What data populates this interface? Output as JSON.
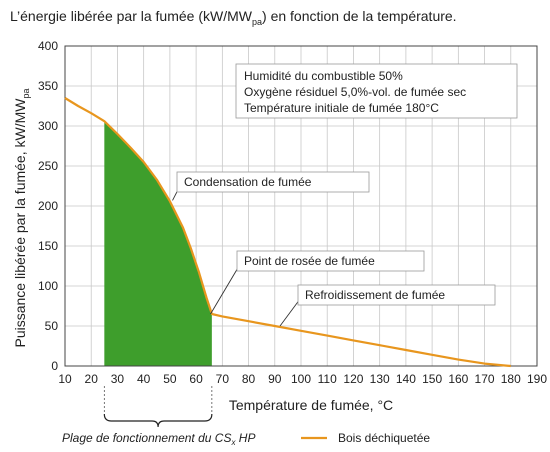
{
  "chart_data": {
    "type": "line",
    "title": {
      "main": "L’énergie libérée par la fumée (kW/MW",
      "sub": "pa",
      "after": ") en fonction de la température."
    },
    "xlabel": "Température de fumée, °C",
    "ylabel": {
      "main": "Puissance libérée par la fumée, kW/MW",
      "sub": "pa"
    },
    "xlim": [
      10,
      190
    ],
    "ylim": [
      0,
      400
    ],
    "x_ticks": [
      10,
      20,
      30,
      40,
      50,
      60,
      70,
      80,
      90,
      100,
      110,
      120,
      130,
      140,
      150,
      160,
      170,
      180,
      190
    ],
    "y_ticks": [
      0,
      50,
      100,
      150,
      200,
      250,
      300,
      350,
      400
    ],
    "grid": true,
    "series": [
      {
        "name": "Bois déchiquetée",
        "color": "#e8961e",
        "x": [
          10,
          15,
          20,
          25,
          30,
          35,
          40,
          45,
          50,
          55,
          58,
          61,
          64,
          66,
          70,
          80,
          90,
          100,
          110,
          120,
          130,
          140,
          150,
          160,
          170,
          180
        ],
        "y": [
          335,
          325,
          316,
          306,
          290,
          273,
          255,
          233,
          206,
          173,
          147,
          118,
          85,
          65,
          62,
          56,
          50,
          44,
          38,
          32,
          26,
          20,
          14,
          8,
          3,
          0
        ]
      }
    ],
    "shaded_region": {
      "x_range": [
        25,
        66
      ],
      "color": "#3e9e2c",
      "label": {
        "main": "Plage de fonctionnement du CS",
        "sub": "x",
        "after": " HP"
      }
    },
    "info_box": [
      "Humidité du combustible 50%",
      "Oxygène résiduel 5,0%-vol. de fumée sec",
      "Température initiale de fumée 180°C"
    ],
    "annotations": [
      {
        "text": "Condensation de fumée",
        "x": 51,
        "y": 207
      },
      {
        "text": "Point de rosée de fumée",
        "x": 65.5,
        "y": 65
      },
      {
        "text": "Refroidissement de fumée",
        "x": 92,
        "y": 50
      }
    ],
    "legend": {
      "position": "bottom-right",
      "label": "Bois déchiquetée"
    }
  }
}
